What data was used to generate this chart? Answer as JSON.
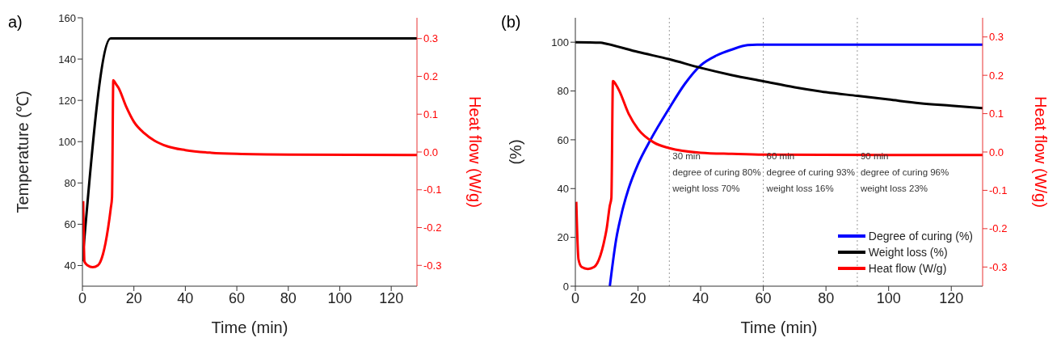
{
  "chart_data": [
    {
      "type": "line",
      "title": "a)",
      "xlabel": "Time (min)",
      "ylabel": "Temperature (℃)",
      "y2label": "Heat flow (W/g)",
      "xlim": [
        0,
        130
      ],
      "xticks": [
        0,
        20,
        40,
        60,
        80,
        100,
        120
      ],
      "ylim": [
        30,
        160
      ],
      "yticks": [
        40,
        60,
        80,
        100,
        120,
        140,
        160
      ],
      "y2lim": [
        -0.355,
        0.355
      ],
      "y2ticks": [
        -0.3,
        -0.2,
        -0.1,
        {
          "value": 0,
          "label": "0.0"
        },
        0.1,
        0.2,
        0.3
      ],
      "grid": false,
      "legend": false,
      "series": [
        {
          "color": "#000000",
          "x": [
            0,
            11,
            130
          ],
          "values": [
            42,
            150,
            150
          ]
        },
        {
          "color": "#ff0000",
          "axis": "y2",
          "x": [
            0.3,
            0.8,
            2,
            4,
            6,
            7,
            8,
            9,
            10,
            11,
            11.5,
            12,
            13,
            14,
            17,
            20,
            24,
            28,
            33,
            40,
            50,
            60,
            80,
            130
          ],
          "values": [
            -0.13,
            -0.29,
            -0.3,
            -0.305,
            -0.3,
            -0.29,
            -0.27,
            -0.24,
            -0.2,
            -0.15,
            -0.12,
            0.19,
            0.18,
            0.17,
            0.12,
            0.08,
            0.05,
            0.03,
            0.015,
            0.005,
            -0.002,
            -0.005,
            -0.007,
            -0.008
          ]
        }
      ]
    },
    {
      "type": "line",
      "title": "(b)",
      "xlabel": "Time (min)",
      "ylabel": "(%)",
      "y2label": "Heat flow (W/g)",
      "xlim": [
        0,
        130
      ],
      "xticks": [
        0,
        20,
        40,
        60,
        80,
        100,
        120
      ],
      "ylim": [
        0,
        110
      ],
      "yticks": [
        0,
        20,
        40,
        60,
        80,
        100
      ],
      "y2lim": [
        -0.35,
        0.35
      ],
      "y2ticks": [
        -0.3,
        -0.2,
        -0.1,
        {
          "value": 0,
          "label": "0.0"
        },
        0.1,
        0.2,
        0.3
      ],
      "grid": false,
      "legend": "bottom right",
      "ref_lines": [
        {
          "axis": "x",
          "value": 30,
          "color": "#999999",
          "line_style": "dotted"
        },
        {
          "axis": "x",
          "value": 60,
          "color": "#999999",
          "line_style": "dotted"
        },
        {
          "axis": "x",
          "value": 90,
          "color": "#999999",
          "line_style": "dotted"
        }
      ],
      "annotations": [
        {
          "text": "30 min\ndegree of curing 80%\nweight loss 70%",
          "x": 30,
          "y": 52
        },
        {
          "text": "60 min\ndegree of curing 93%\nweight loss 16%",
          "x": 60,
          "y": 52
        },
        {
          "text": "90 min\ndegree of curing 96%\nweight loss 23%",
          "x": 90,
          "y": 52
        }
      ],
      "series": [
        {
          "name": "Degree of curing (%)",
          "color": "#0000ff",
          "x": [
            11,
            13,
            15,
            17,
            20,
            24,
            30,
            35,
            40,
            45,
            50,
            55,
            58,
            130
          ],
          "values": [
            0,
            19,
            31,
            40,
            50,
            60,
            73,
            83,
            90.5,
            94.5,
            97,
            98.8,
            99,
            99
          ]
        },
        {
          "name": "Weight loss (%)",
          "color": "#000000",
          "x": [
            0,
            8,
            10,
            20,
            30,
            40,
            50,
            60,
            70,
            80,
            90,
            100,
            110,
            120,
            130
          ],
          "values": [
            100,
            99.8,
            99.3,
            96,
            93,
            89.5,
            86.5,
            84,
            81.5,
            79.5,
            78,
            76.5,
            75,
            74,
            73
          ]
        },
        {
          "name": "Heat flow (W/g)",
          "color": "#ff0000",
          "axis": "y2",
          "x": [
            0.3,
            1,
            2,
            4,
            6,
            7,
            8,
            9,
            10,
            11,
            11.5,
            12,
            13,
            14,
            17,
            20,
            25,
            30,
            40,
            50,
            60,
            130
          ],
          "values": [
            -0.13,
            -0.28,
            -0.3,
            -0.305,
            -0.3,
            -0.29,
            -0.27,
            -0.24,
            -0.2,
            -0.14,
            -0.12,
            0.185,
            0.175,
            0.16,
            0.1,
            0.06,
            0.025,
            0.01,
            -0.002,
            -0.005,
            -0.007,
            -0.008
          ]
        }
      ]
    }
  ]
}
